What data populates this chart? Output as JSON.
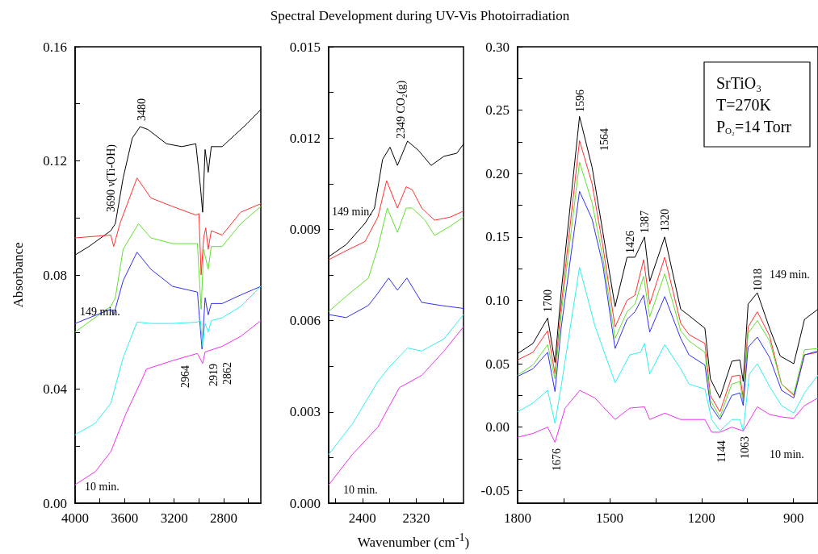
{
  "chart_data": [
    {
      "type": "line",
      "ylabel": "Absorbance",
      "xlim": [
        4000,
        2500
      ],
      "xticks": [
        4000,
        {
          "value": 3800,
          "label": null
        },
        3600,
        {
          "value": 3400,
          "label": null
        },
        3200,
        {
          "value": 3000,
          "label": null
        },
        2800,
        {
          "value": 2600,
          "label": null
        }
      ],
      "ylim": [
        0,
        0.16
      ],
      "yticks": [
        {
          "value": 0,
          "label": "0.00"
        },
        {
          "value": 0.02,
          "label": null
        },
        {
          "value": 0.04,
          "label": "0.04"
        },
        {
          "value": 0.06,
          "label": null
        },
        {
          "value": 0.08,
          "label": "0.08"
        },
        {
          "value": 0.1,
          "label": null
        },
        {
          "value": 0.12,
          "label": "0.12"
        },
        {
          "value": 0.14,
          "label": null
        },
        {
          "value": 0.16,
          "label": "0.16"
        }
      ],
      "grid": false,
      "series": [
        {
          "color": "#000000",
          "x": [
            4000,
            3888,
            3712,
            3675,
            3612,
            3538,
            3475,
            3412,
            3262,
            3138,
            3025,
            2988,
            2970,
            2950,
            2925,
            2900,
            2812,
            2712,
            2612,
            2500
          ],
          "values": [
            0.087,
            0.09,
            0.0955,
            0.098,
            0.114,
            0.128,
            0.132,
            0.131,
            0.126,
            0.125,
            0.126,
            0.111,
            0.102,
            0.124,
            0.116,
            0.125,
            0.125,
            0.129,
            0.133,
            0.138
          ]
        },
        {
          "color": "#ff3030",
          "x": [
            4000,
            3712,
            3688,
            3638,
            3500,
            3388,
            3212,
            3025,
            3000,
            2982,
            2962,
            2945,
            2925,
            2900,
            2812,
            2662,
            2500
          ],
          "values": [
            0.093,
            0.094,
            0.09,
            0.098,
            0.114,
            0.107,
            0.104,
            0.101,
            0.1015,
            0.08,
            0.093,
            0.0965,
            0.089,
            0.0955,
            0.094,
            0.102,
            0.105
          ]
        },
        {
          "color": "#60e030",
          "x": [
            4000,
            3712,
            3675,
            3612,
            3488,
            3388,
            3212,
            3012,
            2982,
            2962,
            2925,
            2900,
            2812,
            2662,
            2500
          ],
          "values": [
            0.06,
            0.069,
            0.072,
            0.089,
            0.098,
            0.093,
            0.091,
            0.091,
            0.068,
            0.089,
            0.082,
            0.09,
            0.09,
            0.098,
            0.104
          ]
        },
        {
          "color": "#3030f0",
          "x": [
            4000,
            3712,
            3688,
            3612,
            3500,
            3388,
            3212,
            3012,
            2975,
            2950,
            2925,
            2900,
            2812,
            2662,
            2500
          ],
          "values": [
            0.063,
            0.068,
            0.066,
            0.078,
            0.088,
            0.082,
            0.076,
            0.074,
            0.054,
            0.072,
            0.066,
            0.07,
            0.07,
            0.073,
            0.076
          ]
        },
        {
          "color": "#30f0f0",
          "x": [
            4000,
            3838,
            3712,
            3612,
            3500,
            3388,
            3212,
            3012,
            2988,
            2970,
            2950,
            2925,
            2900,
            2812,
            2662,
            2500
          ],
          "values": [
            0.024,
            0.028,
            0.035,
            0.051,
            0.0635,
            0.063,
            0.063,
            0.0635,
            0.064,
            0.055,
            0.063,
            0.06,
            0.064,
            0.065,
            0.069,
            0.076
          ]
        },
        {
          "color": "#f030f0",
          "x": [
            4000,
            3838,
            3712,
            3588,
            3438,
            3425,
            3212,
            3012,
            2970,
            2950,
            2812,
            2662,
            2500
          ],
          "values": [
            0.0065,
            0.011,
            0.018,
            0.0315,
            0.0455,
            0.047,
            0.05,
            0.0525,
            0.049,
            0.053,
            0.055,
            0.0585,
            0.064
          ]
        }
      ],
      "annotations": [
        "149 min.",
        "10 min.",
        "3480",
        "3690 ν(Ti-OH)",
        "2964",
        "2919",
        "2862"
      ]
    },
    {
      "type": "line",
      "title": "Spectral Development during UV-Vis Photoirradiation",
      "xlabel": "Wavenumber (cm$^{-1}$)",
      "xlim": [
        2450,
        2250
      ],
      "xticks": [
        {
          "value": 2440,
          "label": null
        },
        2400,
        {
          "value": 2360,
          "label": null
        },
        2320,
        {
          "value": 2280,
          "label": null
        }
      ],
      "ylim": [
        0,
        0.015
      ],
      "yticks": [
        {
          "value": 0,
          "label": "0.000"
        },
        {
          "value": 0.0015,
          "label": null
        },
        {
          "value": 0.003,
          "label": "0.003"
        },
        {
          "value": 0.0045,
          "label": null
        },
        {
          "value": 0.006,
          "label": "0.006"
        },
        {
          "value": 0.0075,
          "label": null
        },
        {
          "value": 0.009,
          "label": "0.009"
        },
        {
          "value": 0.0105,
          "label": null
        },
        {
          "value": 0.012,
          "label": "0.012"
        },
        {
          "value": 0.0135,
          "label": null
        },
        {
          "value": 0.015,
          "label": "0.015"
        }
      ],
      "grid": false,
      "series": [
        {
          "color": "#000000",
          "x": [
            2450,
            2424,
            2396,
            2382,
            2370,
            2359,
            2348,
            2333,
            2317,
            2298,
            2279,
            2260,
            2250
          ],
          "values": [
            0.0081,
            0.0085,
            0.0092,
            0.0097,
            0.0113,
            0.0117,
            0.0111,
            0.0119,
            0.0116,
            0.0111,
            0.0114,
            0.0115,
            0.0118
          ]
        },
        {
          "color": "#ff3030",
          "x": [
            2450,
            2424,
            2396,
            2377,
            2364,
            2348,
            2335,
            2326,
            2312,
            2293,
            2270,
            2250
          ],
          "values": [
            0.008,
            0.0083,
            0.0086,
            0.0094,
            0.0106,
            0.0097,
            0.0104,
            0.0103,
            0.0097,
            0.0093,
            0.0094,
            0.0096
          ]
        },
        {
          "color": "#60e030",
          "x": [
            2450,
            2424,
            2391,
            2377,
            2363,
            2348,
            2335,
            2326,
            2307,
            2293,
            2270,
            2250
          ],
          "values": [
            0.0063,
            0.0068,
            0.0074,
            0.0084,
            0.0097,
            0.0089,
            0.0097,
            0.0097,
            0.0093,
            0.0088,
            0.0091,
            0.0094
          ]
        },
        {
          "color": "#3030f0",
          "x": [
            2450,
            2424,
            2391,
            2377,
            2361,
            2348,
            2334,
            2312,
            2284,
            2250
          ],
          "values": [
            0.0062,
            0.0061,
            0.0065,
            0.0069,
            0.0074,
            0.007,
            0.0074,
            0.0066,
            0.0065,
            0.0064
          ]
        },
        {
          "color": "#30f0f0",
          "x": [
            2450,
            2415,
            2377,
            2359,
            2333,
            2312,
            2279,
            2250
          ],
          "values": [
            0.0016,
            0.0026,
            0.004,
            0.0045,
            0.0051,
            0.005,
            0.0054,
            0.0062
          ]
        },
        {
          "color": "#f030f0",
          "x": [
            2450,
            2415,
            2377,
            2345,
            2312,
            2279,
            2250
          ],
          "values": [
            0.0006,
            0.0016,
            0.0025,
            0.0038,
            0.0042,
            0.005,
            0.0058
          ]
        }
      ],
      "annotations": [
        "149 min.",
        "10 min.",
        "2349 CO₂(g)"
      ]
    },
    {
      "type": "line",
      "xlim": [
        1800,
        820
      ],
      "xticks": [
        1800,
        {
          "value": 1650,
          "label": null
        },
        1500,
        {
          "value": 1350,
          "label": null
        },
        1200,
        {
          "value": 1050,
          "label": null
        },
        900
      ],
      "ylim": [
        -0.06,
        0.3
      ],
      "yticks": [
        {
          "value": -0.05,
          "label": "-0.05"
        },
        {
          "value": -0.025,
          "label": null
        },
        {
          "value": 0,
          "label": "0.00"
        },
        {
          "value": 0.025,
          "label": null
        },
        {
          "value": 0.05,
          "label": "0.05"
        },
        {
          "value": 0.075,
          "label": null
        },
        {
          "value": 0.1,
          "label": "0.10"
        },
        {
          "value": 0.125,
          "label": null
        },
        {
          "value": 0.15,
          "label": "0.15"
        },
        {
          "value": 0.175,
          "label": null
        },
        {
          "value": 0.2,
          "label": "0.20"
        },
        {
          "value": 0.225,
          "label": null
        },
        {
          "value": 0.25,
          "label": "0.25"
        },
        {
          "value": 0.275,
          "label": null
        },
        {
          "value": 0.3,
          "label": "0.30"
        }
      ],
      "grid": false,
      "series": [
        {
          "color": "#000000",
          "x": [
            1800,
            1750,
            1702,
            1678,
            1658,
            1598,
            1557,
            1522,
            1482,
            1443,
            1417,
            1386,
            1369,
            1320,
            1268,
            1241,
            1189,
            1171,
            1140,
            1101,
            1075,
            1064,
            1048,
            1018,
            978,
            943,
            899,
            864,
            820
          ],
          "values": [
            0.058,
            0.066,
            0.086,
            0.051,
            0.106,
            0.245,
            0.205,
            0.154,
            0.095,
            0.134,
            0.134,
            0.15,
            0.115,
            0.15,
            0.093,
            0.088,
            0.078,
            0.038,
            0.023,
            0.052,
            0.053,
            0.036,
            0.097,
            0.106,
            0.078,
            0.056,
            0.05,
            0.085,
            0.093
          ]
        },
        {
          "color": "#ff3030",
          "x": [
            1800,
            1750,
            1702,
            1678,
            1658,
            1598,
            1557,
            1522,
            1482,
            1443,
            1417,
            1389,
            1369,
            1320,
            1268,
            1241,
            1189,
            1171,
            1140,
            1101,
            1075,
            1064,
            1048,
            1018,
            978,
            939,
            899,
            864,
            820
          ],
          "values": [
            0.053,
            0.059,
            0.076,
            0.042,
            0.095,
            0.226,
            0.192,
            0.143,
            0.079,
            0.1,
            0.104,
            0.132,
            0.097,
            0.134,
            0.082,
            0.073,
            0.066,
            0.025,
            0.012,
            0.04,
            0.041,
            0.023,
            0.079,
            0.091,
            0.072,
            0.034,
            0.025,
            0.057,
            0.059
          ]
        },
        {
          "color": "#60e030",
          "x": [
            1800,
            1750,
            1702,
            1678,
            1658,
            1598,
            1557,
            1522,
            1482,
            1443,
            1417,
            1389,
            1369,
            1320,
            1268,
            1241,
            1189,
            1171,
            1140,
            1101,
            1075,
            1064,
            1048,
            1018,
            978,
            939,
            899,
            864,
            820
          ],
          "values": [
            0.041,
            0.049,
            0.065,
            0.038,
            0.089,
            0.209,
            0.177,
            0.134,
            0.07,
            0.091,
            0.097,
            0.119,
            0.087,
            0.121,
            0.076,
            0.068,
            0.059,
            0.021,
            0.008,
            0.034,
            0.036,
            0.019,
            0.074,
            0.084,
            0.068,
            0.034,
            0.026,
            0.061,
            0.062
          ]
        },
        {
          "color": "#3030f0",
          "x": [
            1800,
            1750,
            1702,
            1678,
            1658,
            1598,
            1557,
            1522,
            1482,
            1443,
            1417,
            1389,
            1369,
            1320,
            1268,
            1241,
            1189,
            1171,
            1140,
            1101,
            1075,
            1064,
            1048,
            1018,
            978,
            939,
            899,
            864,
            820
          ],
          "values": [
            0.04,
            0.046,
            0.059,
            0.028,
            0.078,
            0.186,
            0.164,
            0.128,
            0.062,
            0.085,
            0.091,
            0.104,
            0.075,
            0.103,
            0.07,
            0.057,
            0.049,
            0.017,
            0.006,
            0.025,
            0.027,
            0.017,
            0.063,
            0.071,
            0.055,
            0.029,
            0.023,
            0.057,
            0.06
          ]
        },
        {
          "color": "#30f0f0",
          "x": [
            1800,
            1750,
            1702,
            1678,
            1658,
            1598,
            1548,
            1482,
            1434,
            1399,
            1386,
            1369,
            1320,
            1268,
            1241,
            1189,
            1167,
            1140,
            1101,
            1075,
            1064,
            1044,
            1018,
            978,
            939,
            899,
            864,
            820
          ],
          "values": [
            0.012,
            0.019,
            0.029,
            0.003,
            0.032,
            0.126,
            0.08,
            0.035,
            0.057,
            0.059,
            0.066,
            0.042,
            0.065,
            0.046,
            0.034,
            0.03,
            0.006,
            -0.003,
            0.006,
            0.006,
            -0.003,
            0.042,
            0.05,
            0.032,
            0.017,
            0.011,
            0.027,
            0.041
          ]
        },
        {
          "color": "#f030f0",
          "x": [
            1800,
            1750,
            1702,
            1678,
            1645,
            1597,
            1548,
            1482,
            1434,
            1386,
            1369,
            1320,
            1268,
            1189,
            1167,
            1140,
            1101,
            1064,
            1018,
            978,
            939,
            899,
            864,
            820
          ],
          "values": [
            -0.008,
            -0.005,
            0,
            -0.012,
            0.015,
            0.029,
            0.023,
            0.006,
            0.015,
            0.016,
            0.006,
            0.011,
            0.006,
            0.006,
            -0.004,
            -0.004,
            0,
            -0.003,
            0.016,
            0.01,
            0.008,
            0.007,
            0.017,
            0.023
          ]
        }
      ],
      "annotations": [
        "SrTiO₃",
        "T=270K",
        "P$_{O₂}$=14 Torr",
        "149 min.",
        "10 min.",
        "1596",
        "1564",
        "1426",
        "1387",
        "1320",
        "1700",
        "1018",
        "1676",
        "1144",
        "1063"
      ]
    }
  ]
}
